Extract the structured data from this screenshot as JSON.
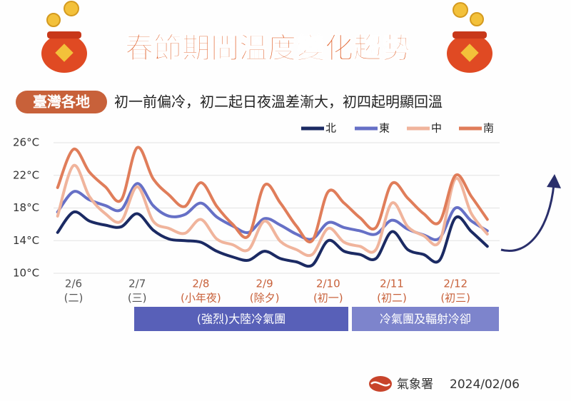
{
  "chart_data": {
    "type": "line",
    "title": "春節期間溫度變化趨勢",
    "tag": "臺灣各地",
    "subtitle": "初一前偏冷，初二起日夜溫差漸大，初四起明顯回溫",
    "categories": [
      null,
      "2/6",
      null,
      null,
      null,
      "2/7",
      null,
      null,
      null,
      "2/8",
      null,
      null,
      null,
      "2/9",
      null,
      null,
      null,
      "2/10",
      null,
      null,
      null,
      "2/11",
      null,
      null,
      null,
      "2/12",
      null,
      null
    ],
    "sublabels": [
      null,
      "(二)",
      null,
      null,
      null,
      "(三)",
      null,
      null,
      null,
      "(小年夜)",
      null,
      null,
      null,
      "(除夕)",
      null,
      null,
      null,
      "(初一)",
      null,
      null,
      null,
      "(初二)",
      null,
      null,
      null,
      "(初三)",
      null,
      null
    ],
    "series": [
      {
        "name": "北",
        "color": "#1b2a63",
        "values": [
          15.0,
          17.5,
          16.4,
          15.9,
          15.7,
          17.3,
          15.3,
          14.2,
          14.0,
          13.8,
          12.7,
          12.0,
          11.6,
          12.7,
          11.8,
          11.4,
          11.0,
          14.0,
          12.7,
          12.3,
          11.8,
          15.1,
          12.9,
          12.3,
          11.6,
          16.8,
          15.1,
          13.3
        ]
      },
      {
        "name": "東",
        "color": "#6670c6",
        "values": [
          17.5,
          20.0,
          19.0,
          18.3,
          17.8,
          21.0,
          18.3,
          17.0,
          17.2,
          18.6,
          16.9,
          15.8,
          15.0,
          16.7,
          15.9,
          14.8,
          14.2,
          16.2,
          15.6,
          15.2,
          14.8,
          16.5,
          15.4,
          14.7,
          14.3,
          18.0,
          16.4,
          15.2
        ]
      },
      {
        "name": "中",
        "color": "#f0b49c",
        "values": [
          17.0,
          23.2,
          19.4,
          17.3,
          16.4,
          20.6,
          16.4,
          15.5,
          14.9,
          16.6,
          14.2,
          13.5,
          12.9,
          16.4,
          13.9,
          12.9,
          12.3,
          15.5,
          13.8,
          13.3,
          12.9,
          18.6,
          15.7,
          14.6,
          13.9,
          21.6,
          17.3,
          14.8
        ]
      },
      {
        "name": "南",
        "color": "#e07d5a",
        "values": [
          20.5,
          25.2,
          22.4,
          20.6,
          19.0,
          25.4,
          21.6,
          19.6,
          18.2,
          21.1,
          18.2,
          16.0,
          14.6,
          20.8,
          18.6,
          15.8,
          14.0,
          20.0,
          18.6,
          16.8,
          15.6,
          21.0,
          19.2,
          17.3,
          16.3,
          22.0,
          19.4,
          16.6
        ]
      }
    ],
    "ylim": [
      10,
      26
    ],
    "yticks": [
      {
        "value": 10,
        "label": "10°C"
      },
      {
        "value": 14,
        "label": "14°C"
      },
      {
        "value": 18,
        "label": "18°C"
      },
      {
        "value": 22,
        "label": "22°C"
      },
      {
        "value": 26,
        "label": "26°C"
      }
    ],
    "grid": true,
    "annotations": [
      "(強烈)大陸冷氣團",
      "冷氣團及輻射冷卻"
    ],
    "source": "氣象署",
    "date": "2024/02/06"
  }
}
